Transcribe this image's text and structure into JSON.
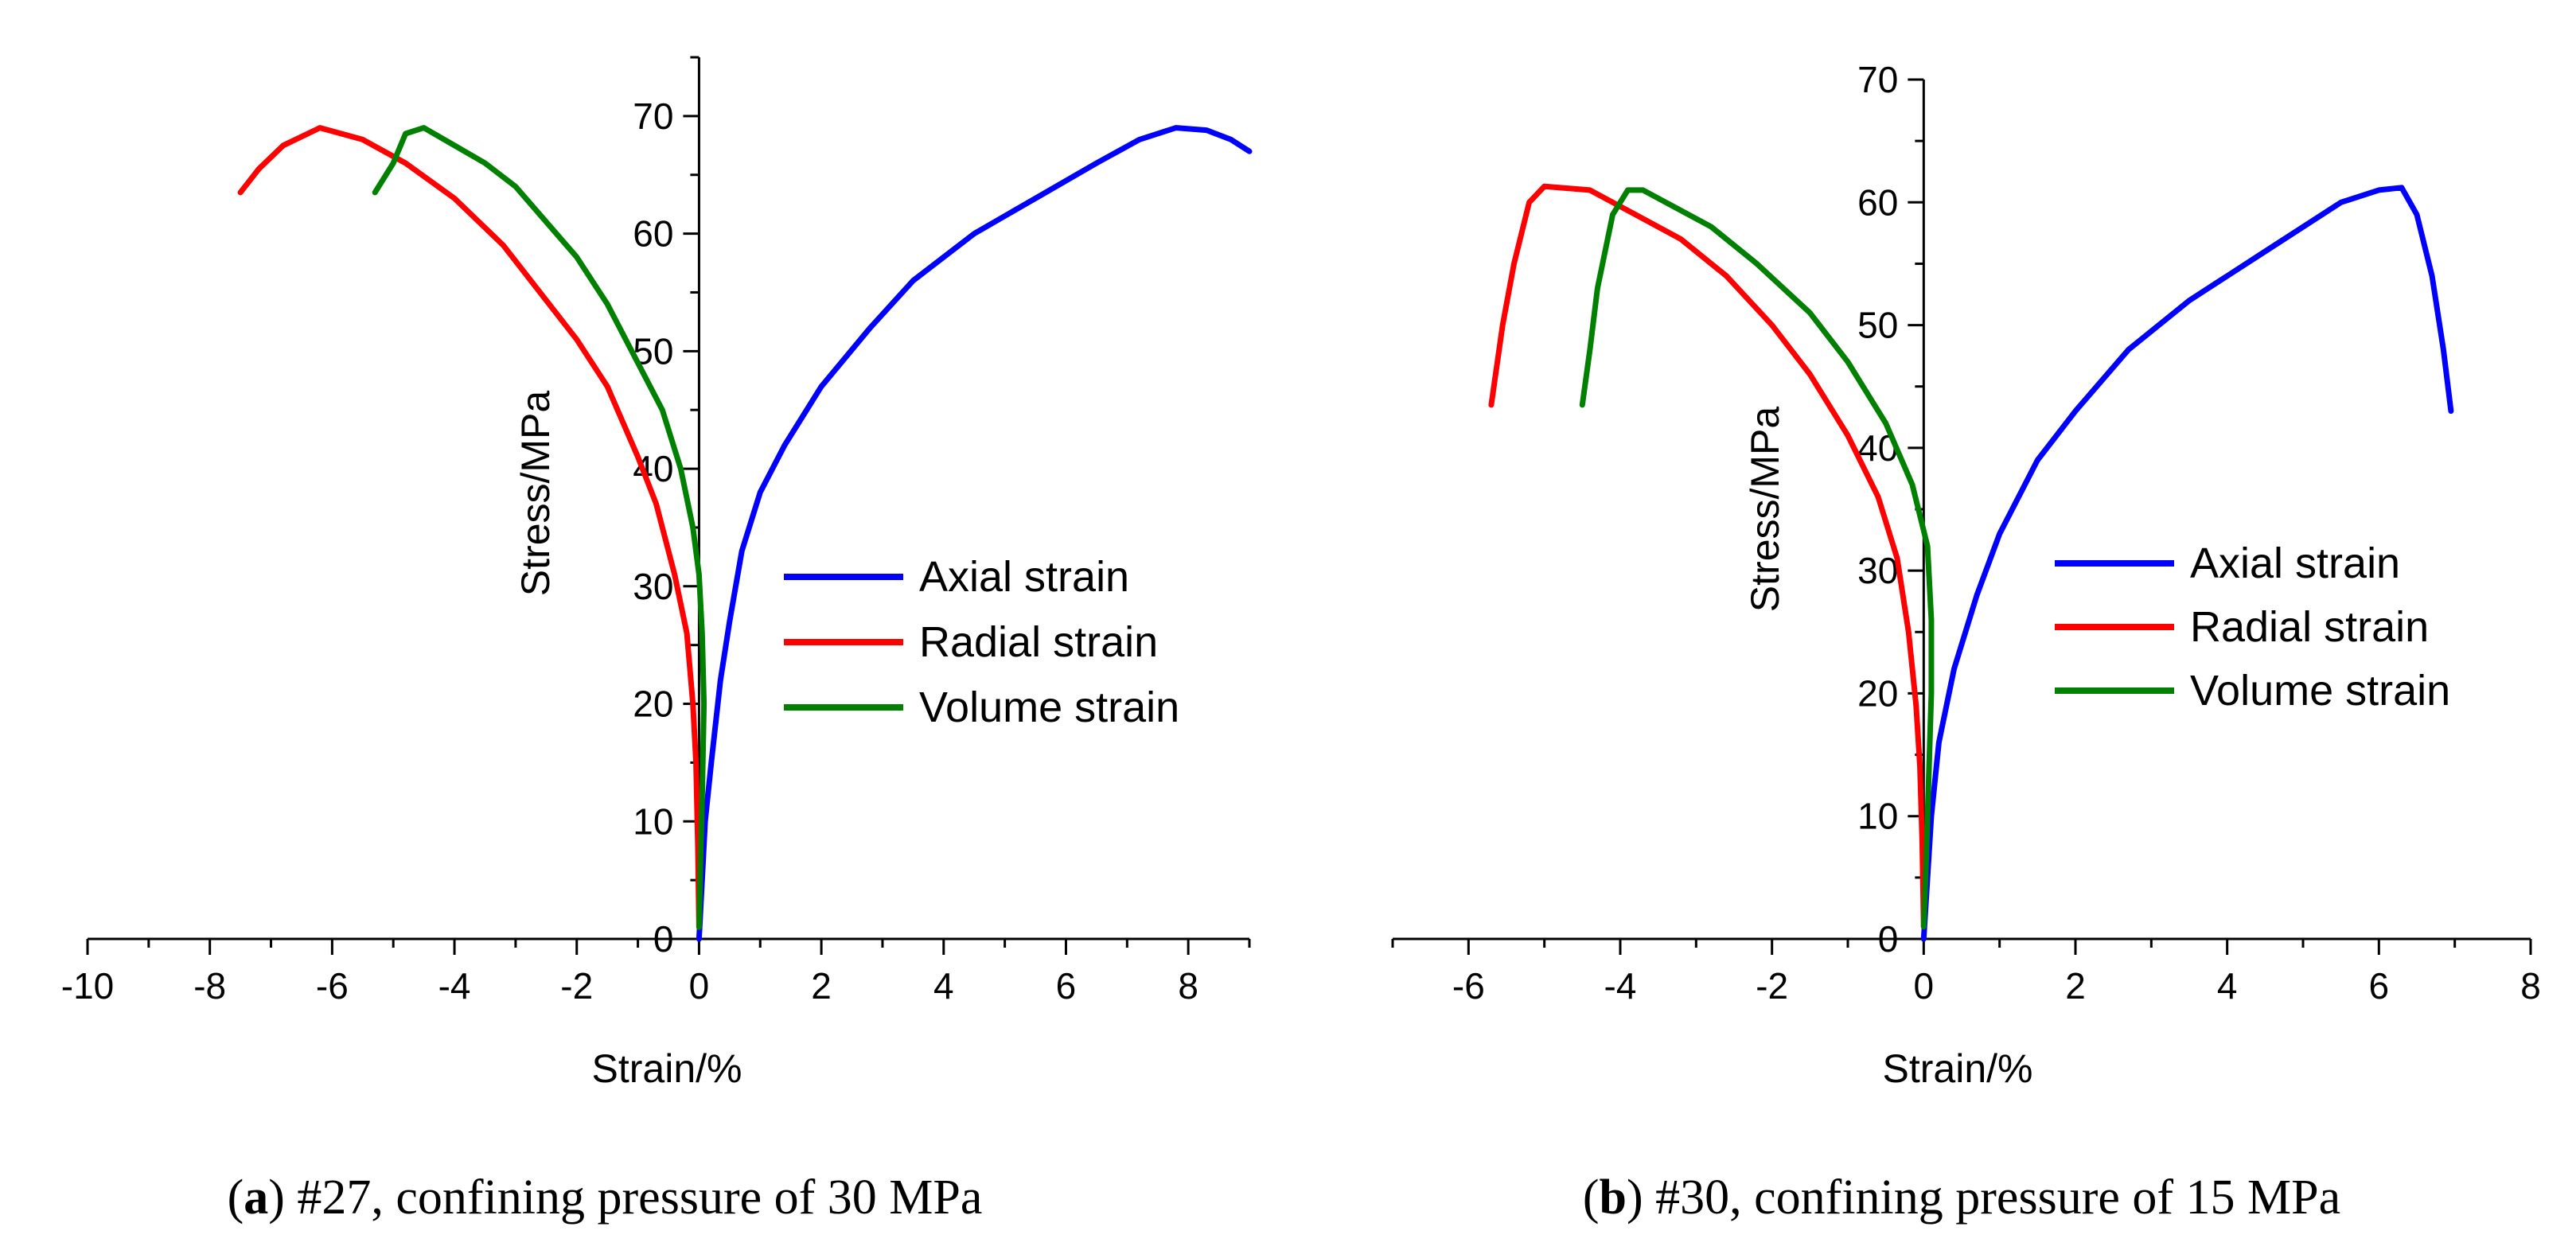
{
  "chart_data": [
    {
      "type": "line",
      "caption_letter": "a",
      "caption_text": "#27, confining pressure of 30 MPa",
      "xlabel": "Strain/%",
      "ylabel": "Stress/MPa",
      "xlim": [
        -10,
        9
      ],
      "ylim": [
        0,
        75
      ],
      "x_ticks": [
        -10,
        -8,
        -6,
        -4,
        -2,
        0,
        2,
        4,
        6,
        8
      ],
      "y_ticks": [
        0,
        10,
        20,
        30,
        40,
        50,
        60,
        70
      ],
      "legend_position": "right",
      "series": [
        {
          "name": "Axial strain",
          "color": "#0000ff",
          "points": [
            [
              0,
              0
            ],
            [
              0.05,
              5
            ],
            [
              0.1,
              10
            ],
            [
              0.2,
              15
            ],
            [
              0.35,
              22
            ],
            [
              0.5,
              27
            ],
            [
              0.7,
              33
            ],
            [
              1.0,
              38
            ],
            [
              1.4,
              42
            ],
            [
              2.0,
              47
            ],
            [
              2.8,
              52
            ],
            [
              3.5,
              56
            ],
            [
              4.5,
              60
            ],
            [
              5.5,
              63
            ],
            [
              6.5,
              66
            ],
            [
              7.2,
              68
            ],
            [
              7.8,
              69
            ],
            [
              8.3,
              68.8
            ],
            [
              8.7,
              68
            ],
            [
              9.0,
              67
            ]
          ]
        },
        {
          "name": "Radial strain",
          "color": "#ff0000",
          "points": [
            [
              0,
              1
            ],
            [
              -0.02,
              8
            ],
            [
              -0.05,
              15
            ],
            [
              -0.1,
              20
            ],
            [
              -0.2,
              26
            ],
            [
              -0.4,
              31
            ],
            [
              -0.7,
              37
            ],
            [
              -1.0,
              41
            ],
            [
              -1.5,
              47
            ],
            [
              -2.0,
              51
            ],
            [
              -2.6,
              55
            ],
            [
              -3.2,
              59
            ],
            [
              -4.0,
              63
            ],
            [
              -4.8,
              66
            ],
            [
              -5.5,
              68
            ],
            [
              -6.2,
              69
            ],
            [
              -6.8,
              67.5
            ],
            [
              -7.2,
              65.5
            ],
            [
              -7.5,
              63.5
            ]
          ]
        },
        {
          "name": "Volume strain",
          "color": "#008000",
          "points": [
            [
              0,
              1
            ],
            [
              0.02,
              6
            ],
            [
              0.05,
              12
            ],
            [
              0.08,
              20
            ],
            [
              0.05,
              26
            ],
            [
              0.0,
              31
            ],
            [
              -0.1,
              35
            ],
            [
              -0.3,
              40
            ],
            [
              -0.6,
              45
            ],
            [
              -1.0,
              49
            ],
            [
              -1.5,
              54
            ],
            [
              -2.0,
              58
            ],
            [
              -2.5,
              61
            ],
            [
              -3.0,
              64
            ],
            [
              -3.5,
              66
            ],
            [
              -4.0,
              67.5
            ],
            [
              -4.5,
              69
            ],
            [
              -4.8,
              68.5
            ],
            [
              -5.0,
              66
            ],
            [
              -5.3,
              63.5
            ]
          ]
        }
      ]
    },
    {
      "type": "line",
      "caption_letter": "b",
      "caption_text": "#30, confining pressure of 15 MPa",
      "xlabel": "Strain/%",
      "ylabel": "Stress/MPa",
      "xlim": [
        -7,
        8
      ],
      "ylim": [
        0,
        70
      ],
      "x_ticks": [
        -6,
        -4,
        -2,
        0,
        2,
        4,
        6,
        8
      ],
      "y_ticks": [
        0,
        10,
        20,
        30,
        40,
        50,
        60,
        70
      ],
      "legend_position": "right",
      "series": [
        {
          "name": "Axial strain",
          "color": "#0000ff",
          "points": [
            [
              0,
              0
            ],
            [
              0.05,
              5
            ],
            [
              0.1,
              10
            ],
            [
              0.2,
              16
            ],
            [
              0.4,
              22
            ],
            [
              0.7,
              28
            ],
            [
              1.0,
              33
            ],
            [
              1.5,
              39
            ],
            [
              2.0,
              43
            ],
            [
              2.7,
              48
            ],
            [
              3.5,
              52
            ],
            [
              4.5,
              56
            ],
            [
              5.5,
              60
            ],
            [
              6.0,
              61
            ],
            [
              6.3,
              61.2
            ],
            [
              6.5,
              59
            ],
            [
              6.7,
              54
            ],
            [
              6.85,
              48
            ],
            [
              6.95,
              43
            ]
          ]
        },
        {
          "name": "Radial strain",
          "color": "#ff0000",
          "points": [
            [
              0,
              1
            ],
            [
              -0.02,
              8
            ],
            [
              -0.05,
              14
            ],
            [
              -0.1,
              19
            ],
            [
              -0.2,
              25
            ],
            [
              -0.35,
              31
            ],
            [
              -0.6,
              36
            ],
            [
              -1.0,
              41
            ],
            [
              -1.5,
              46
            ],
            [
              -2.0,
              50
            ],
            [
              -2.6,
              54
            ],
            [
              -3.2,
              57
            ],
            [
              -3.8,
              59
            ],
            [
              -4.4,
              61
            ],
            [
              -5.0,
              61.3
            ],
            [
              -5.2,
              60
            ],
            [
              -5.4,
              55
            ],
            [
              -5.55,
              50
            ],
            [
              -5.7,
              43.5
            ]
          ]
        },
        {
          "name": "Volume strain",
          "color": "#008000",
          "points": [
            [
              0,
              1
            ],
            [
              0.03,
              6
            ],
            [
              0.06,
              12
            ],
            [
              0.1,
              20
            ],
            [
              0.1,
              26
            ],
            [
              0.05,
              32
            ],
            [
              -0.15,
              37
            ],
            [
              -0.5,
              42
            ],
            [
              -1.0,
              47
            ],
            [
              -1.5,
              51
            ],
            [
              -2.2,
              55
            ],
            [
              -2.8,
              58
            ],
            [
              -3.4,
              60
            ],
            [
              -3.7,
              61
            ],
            [
              -3.9,
              61
            ],
            [
              -4.1,
              59
            ],
            [
              -4.3,
              53
            ],
            [
              -4.4,
              48
            ],
            [
              -4.5,
              43.5
            ]
          ]
        }
      ]
    }
  ]
}
